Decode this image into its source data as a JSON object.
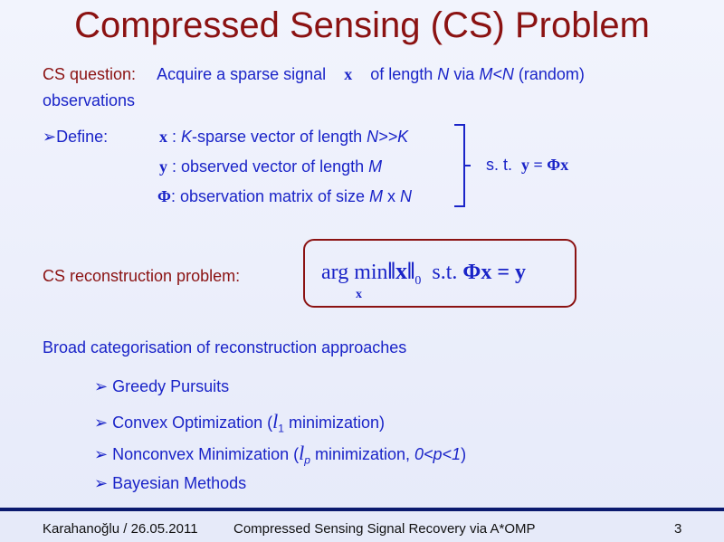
{
  "title": "Compressed Sensing (CS) Problem",
  "question": {
    "label": "CS question:",
    "text_a": "Acquire a sparse signal",
    "x": "x",
    "text_b": "of length",
    "N": "N",
    "via": "via",
    "MN": "M<N",
    "random": "(random)",
    "line2": "observations"
  },
  "define": {
    "label": "Define:",
    "items": [
      {
        "sym": "x",
        "text": " : ",
        "italic": "K",
        "rest": "-sparse vector of length ",
        "tail": "N>>K"
      },
      {
        "sym": "y",
        "text": " : observed vector of length ",
        "tail": "M"
      },
      {
        "sym": "Φ",
        "text": ": observation matrix of size ",
        "tail": "M",
        "x": " x ",
        "tail2": "N"
      }
    ],
    "st": "s. t.",
    "st_eq": "y = Φx"
  },
  "reconstruction": {
    "label": "CS reconstruction problem:",
    "argmin": "arg min",
    "sub": "x",
    "norm": "‖x‖",
    "norm_sub": "0",
    "st": "s.t.",
    "eq": "Φx = y"
  },
  "broad": "Broad categorisation of reconstruction approaches",
  "bullets": [
    {
      "a": "Greedy Pursuits"
    },
    {
      "a": "Convex Optimization (",
      "l": "l",
      "sub": "1",
      "b": " minimization)"
    },
    {
      "a": "Nonconvex Minimization (",
      "l": "l",
      "sub": "p",
      "b": " minimization, ",
      "c": "0<p<1",
      ")": ")"
    },
    {
      "a": "Bayesian Methods"
    }
  ],
  "bullet_icon": "arrow-bullet-icon",
  "footer": {
    "author": "Karahanoğlu / 26.05.2011",
    "talk": "Compressed Sensing Signal Recovery via A*OMP",
    "page": "3"
  },
  "colors": {
    "title": "#8b1212",
    "text": "#1a24c8",
    "footer_line": "#0b1a6e"
  }
}
